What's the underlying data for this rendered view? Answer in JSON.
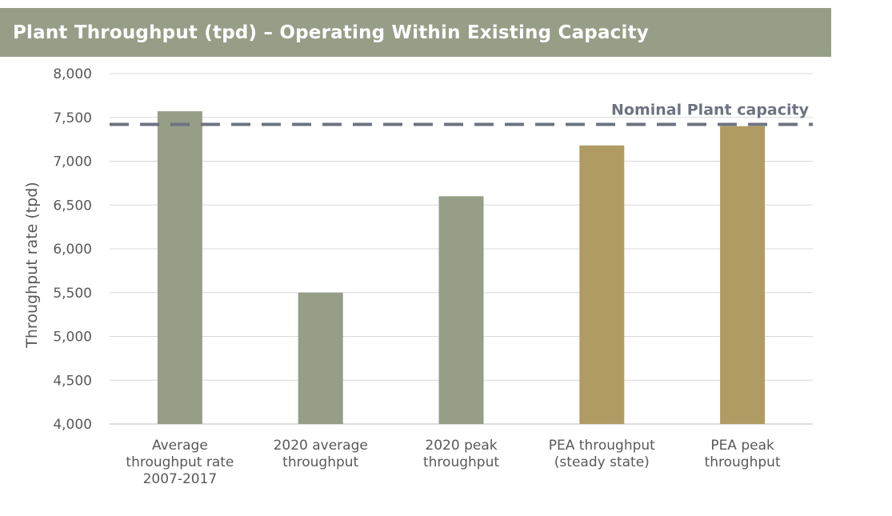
{
  "title": "Plant Throughput (tpd) – Operating Within Existing Capacity",
  "chart_data": {
    "type": "bar",
    "ylabel": "Throughput rate (tpd)",
    "ylim": [
      4000,
      8000
    ],
    "yticks": [
      4000,
      4500,
      5000,
      5500,
      6000,
      6500,
      7000,
      7500,
      8000
    ],
    "ytick_labels": [
      "4,000",
      "4,500",
      "5,000",
      "5,500",
      "6,000",
      "6,500",
      "7,000",
      "7,500",
      "8,000"
    ],
    "grid": true,
    "categories": [
      [
        "Average",
        "throughput rate",
        "2007-2017"
      ],
      [
        "2020 average",
        "throughput"
      ],
      [
        "2020 peak",
        "throughput"
      ],
      [
        "PEA throughput",
        "(steady state)"
      ],
      [
        "PEA peak",
        "throughput"
      ]
    ],
    "values": [
      7570,
      5500,
      6600,
      7180,
      7400
    ],
    "bar_colors": [
      "#969e87",
      "#969e87",
      "#969e87",
      "#b09c63",
      "#b09c63"
    ],
    "reference_line": {
      "label": "Nominal Plant capacity",
      "value": 7420,
      "color": "#6d7380",
      "style": "dashed"
    }
  }
}
